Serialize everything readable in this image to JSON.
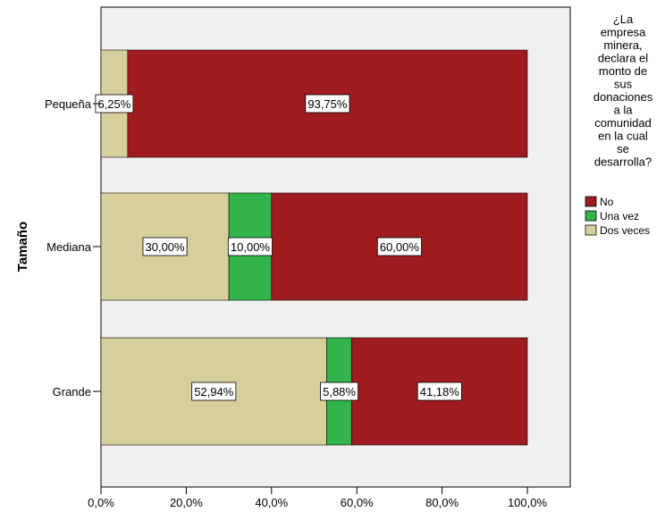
{
  "chart_data": {
    "type": "bar",
    "orientation": "horizontal",
    "stacked": true,
    "ylabel": "Tamaño",
    "categories": [
      "Pequeña",
      "Mediana",
      "Grande"
    ],
    "series": [
      {
        "name": "Dos veces",
        "values": [
          6.25,
          30.0,
          52.94
        ],
        "labels": [
          "6,25%",
          "30,00%",
          "52,94%"
        ],
        "color": "#d6cf9c"
      },
      {
        "name": "Una vez",
        "values": [
          0,
          10.0,
          5.88
        ],
        "labels": [
          "",
          "10,00%",
          "5,88%"
        ],
        "color": "#33b44a"
      },
      {
        "name": "No",
        "values": [
          93.75,
          60.0,
          41.18
        ],
        "labels": [
          "93,75%",
          "60,00%",
          "41,18%"
        ],
        "color": "#9e1b1f"
      }
    ],
    "xlim": [
      0,
      100
    ],
    "xticks": [
      "0,0%",
      "20,0%",
      "40,0%",
      "60,0%",
      "80,0%",
      "100,0%"
    ],
    "grid": false,
    "legend": {
      "title_lines": [
        "¿La",
        "empresa",
        "minera,",
        "declara el",
        "monto de",
        "sus",
        "donaciones",
        "a la",
        "comunidad",
        "en la cual",
        "se",
        "desarrolla?"
      ],
      "placement": "right",
      "order": [
        "No",
        "Una vez",
        "Dos veces"
      ]
    },
    "colors": {
      "plot_background": "#f0f0f0",
      "border": "#000000"
    }
  }
}
